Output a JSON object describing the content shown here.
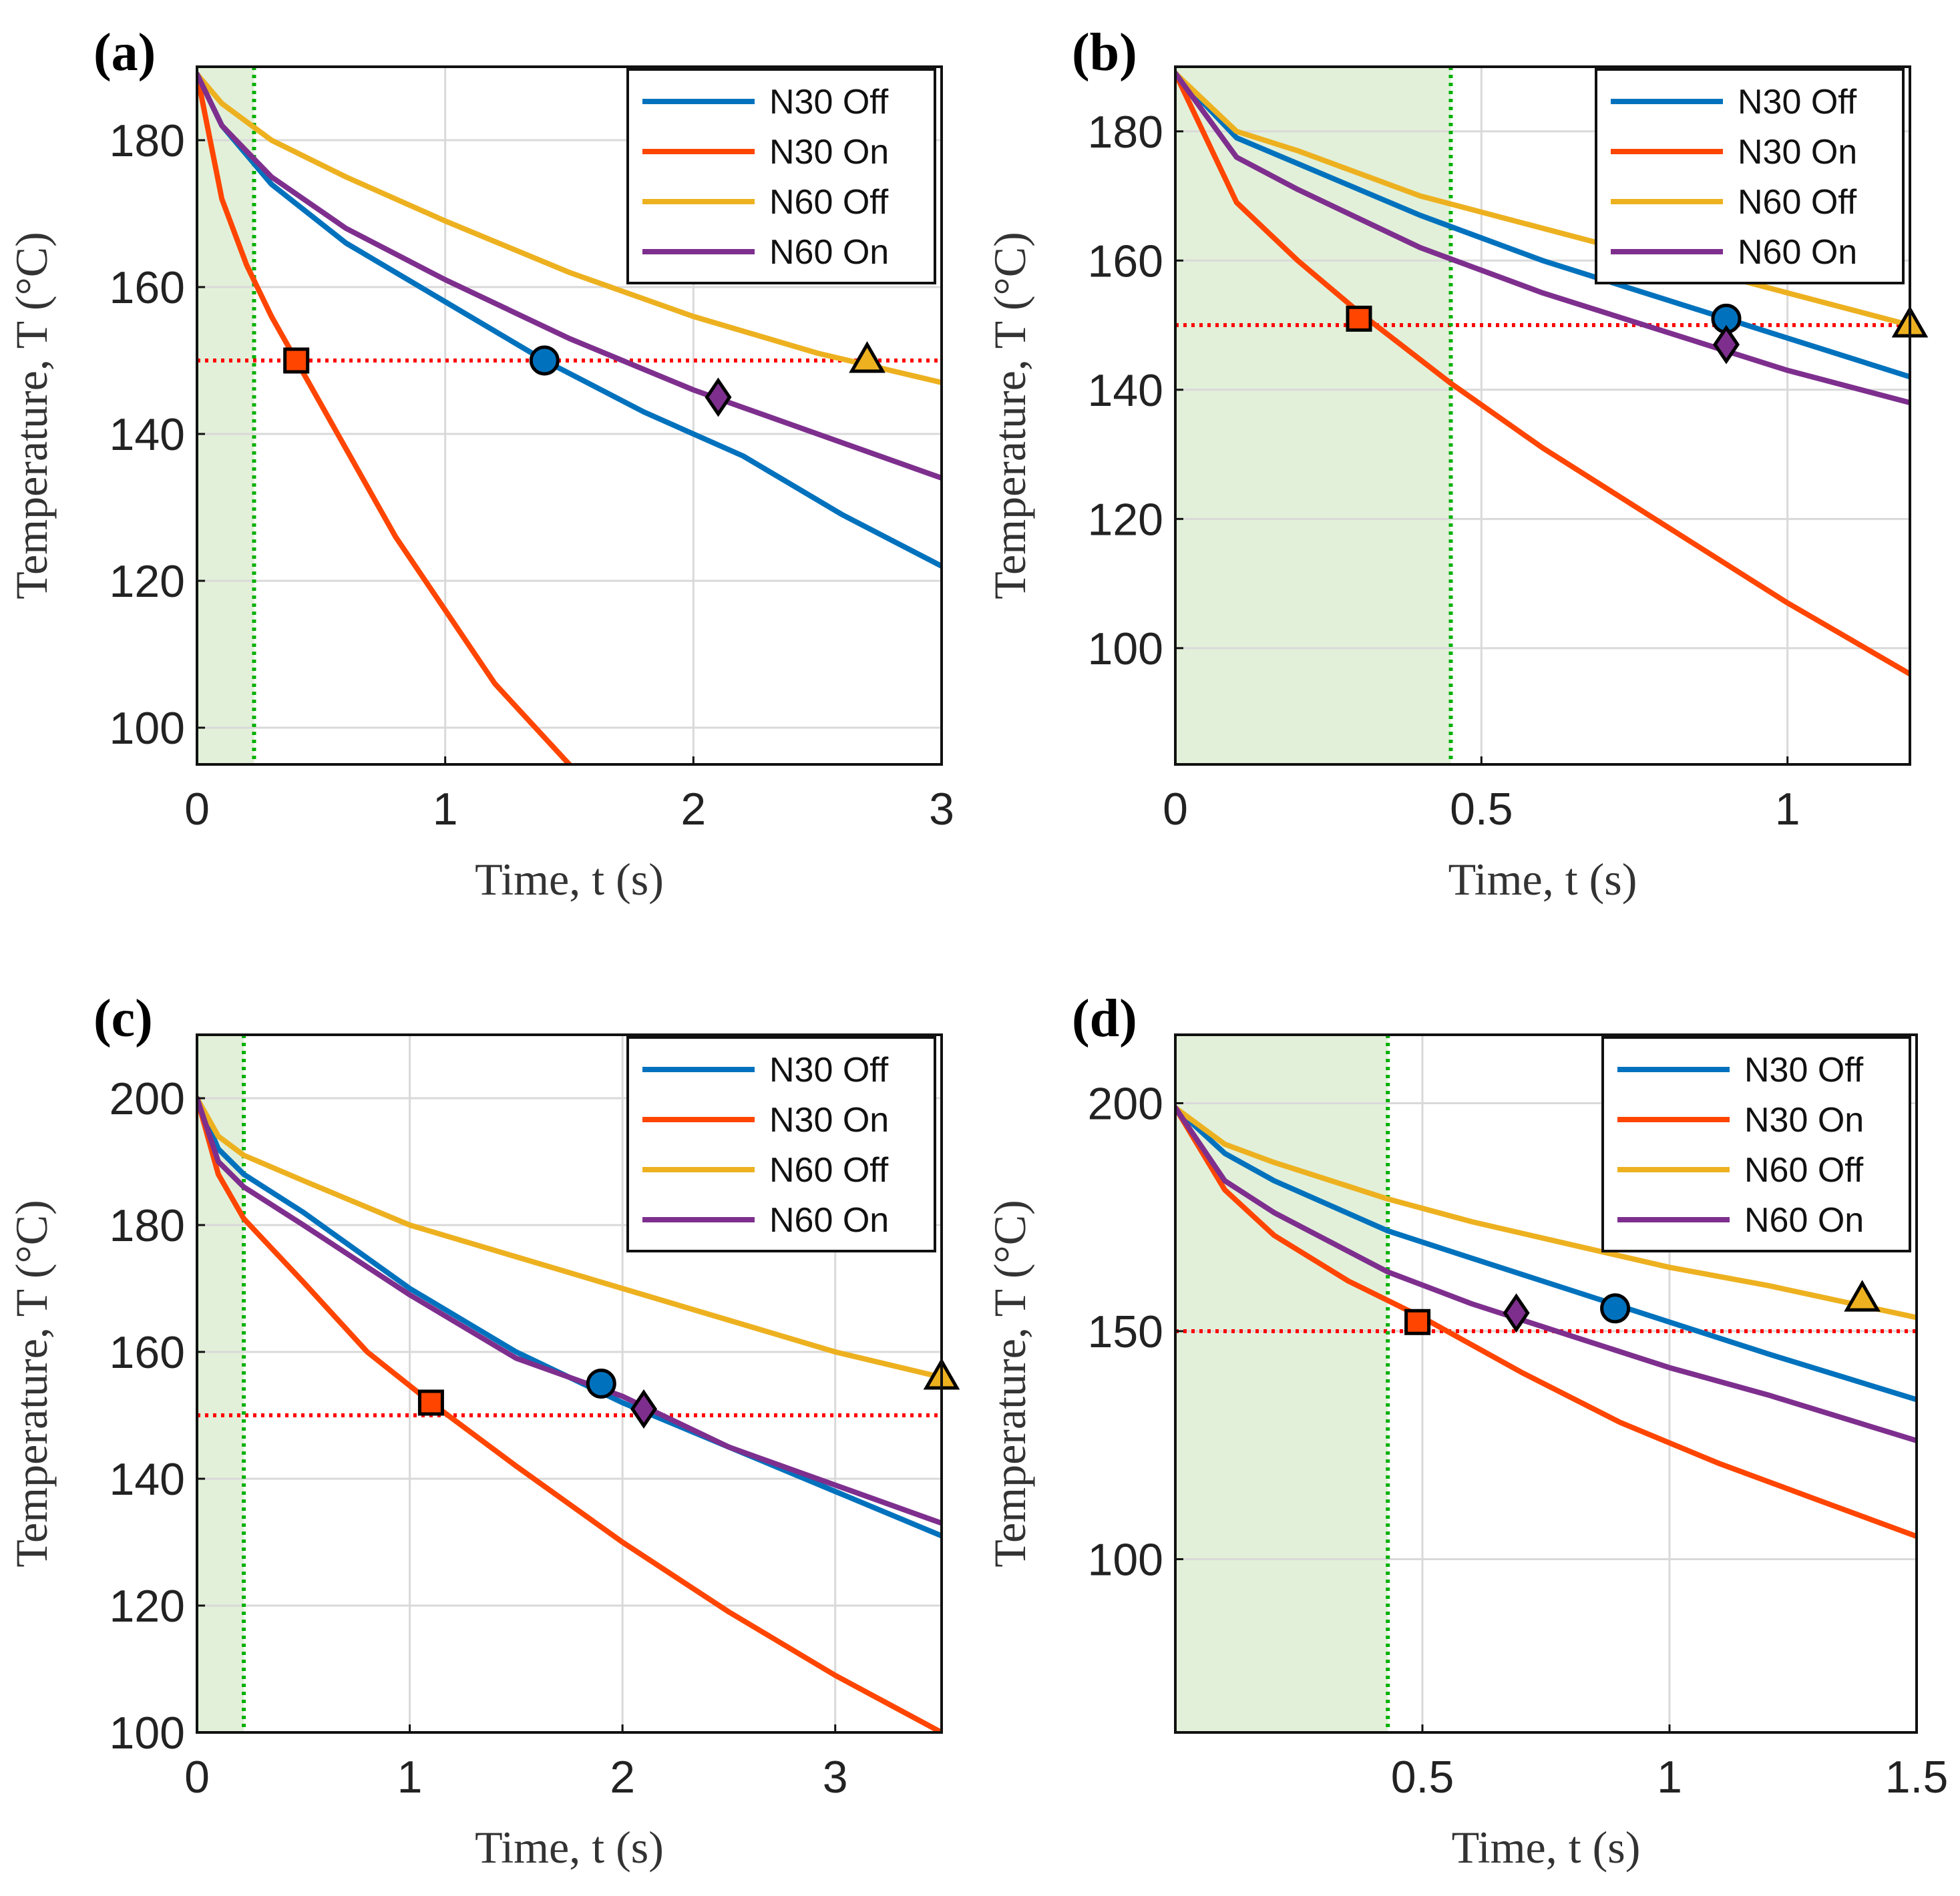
{
  "colors": {
    "N30 Off": "#0072BD",
    "N30 On": "#FF4500",
    "N60 Off": "#EDB120",
    "N60 On": "#7E2F8E",
    "shade": "#E2F0D9",
    "threshold": "#FF0000",
    "cutoff": "#00B000"
  },
  "chart_data": [
    {
      "panel": "(a)",
      "type": "line",
      "xlabel": "Time, t (s)",
      "ylabel": "Temperature, T (°C)",
      "xlim": [
        0,
        3
      ],
      "ylim": [
        95,
        190
      ],
      "xticks": [
        0,
        1,
        2,
        3
      ],
      "yticks": [
        100,
        120,
        140,
        160,
        180
      ],
      "grid": true,
      "legend_position": "top-right",
      "shaded_until": 0.23,
      "cutoff_line": 0.23,
      "threshold": 150,
      "series": [
        {
          "name": "N30 Off",
          "x": [
            0,
            0.1,
            0.3,
            0.6,
            1.0,
            1.4,
            1.8,
            2.2,
            2.6,
            3.0
          ],
          "y": [
            189,
            182,
            174,
            166,
            158,
            150,
            143,
            137,
            129,
            122
          ]
        },
        {
          "name": "N30 On",
          "x": [
            0,
            0.1,
            0.2,
            0.3,
            0.4,
            0.6,
            0.8,
            1.0,
            1.2,
            1.5
          ],
          "y": [
            189,
            172,
            163,
            156,
            150,
            138,
            126,
            116,
            106,
            95
          ]
        },
        {
          "name": "N60 Off",
          "x": [
            0,
            0.1,
            0.3,
            0.6,
            1.0,
            1.5,
            2.0,
            2.5,
            3.0
          ],
          "y": [
            189,
            185,
            180,
            175,
            169,
            162,
            156,
            151,
            147
          ]
        },
        {
          "name": "N60 On",
          "x": [
            0,
            0.1,
            0.3,
            0.6,
            1.0,
            1.5,
            2.0,
            2.5,
            3.0
          ],
          "y": [
            189,
            182,
            175,
            168,
            161,
            153,
            146,
            140,
            134
          ]
        }
      ],
      "markers": [
        {
          "series": "N30 On",
          "shape": "square",
          "x": 0.4,
          "y": 150
        },
        {
          "series": "N30 Off",
          "shape": "circle",
          "x": 1.4,
          "y": 150
        },
        {
          "series": "N60 On",
          "shape": "diamond",
          "x": 2.1,
          "y": 145
        },
        {
          "series": "N60 Off",
          "shape": "triangle",
          "x": 2.7,
          "y": 150
        }
      ]
    },
    {
      "panel": "(b)",
      "type": "line",
      "xlabel": "Time, t (s)",
      "ylabel": "Temperature, T (°C)",
      "xlim": [
        0,
        1.2
      ],
      "ylim": [
        82,
        190
      ],
      "xticks": [
        0,
        0.5,
        1
      ],
      "yticks": [
        100,
        120,
        140,
        160,
        180
      ],
      "grid": true,
      "legend_position": "top-right",
      "shaded_until": 0.45,
      "cutoff_line": 0.45,
      "threshold": 150,
      "series": [
        {
          "name": "N30 Off",
          "x": [
            0,
            0.1,
            0.2,
            0.4,
            0.6,
            0.8,
            1.0,
            1.2
          ],
          "y": [
            189,
            179,
            175,
            167,
            160,
            154,
            148,
            142
          ]
        },
        {
          "name": "N30 On",
          "x": [
            0,
            0.1,
            0.2,
            0.3,
            0.45,
            0.6,
            0.8,
            1.0,
            1.2
          ],
          "y": [
            189,
            169,
            160,
            152,
            141,
            131,
            119,
            107,
            96
          ]
        },
        {
          "name": "N60 Off",
          "x": [
            0,
            0.1,
            0.2,
            0.4,
            0.6,
            0.8,
            1.0,
            1.2
          ],
          "y": [
            189,
            180,
            177,
            170,
            165,
            160,
            155,
            150
          ]
        },
        {
          "name": "N60 On",
          "x": [
            0,
            0.1,
            0.2,
            0.4,
            0.6,
            0.8,
            1.0,
            1.2
          ],
          "y": [
            189,
            176,
            171,
            162,
            155,
            149,
            143,
            138
          ]
        }
      ],
      "markers": [
        {
          "series": "N30 On",
          "shape": "square",
          "x": 0.3,
          "y": 151
        },
        {
          "series": "N30 Off",
          "shape": "circle",
          "x": 0.9,
          "y": 151
        },
        {
          "series": "N60 On",
          "shape": "diamond",
          "x": 0.9,
          "y": 147
        },
        {
          "series": "N60 Off",
          "shape": "triangle",
          "x": 1.2,
          "y": 150
        }
      ]
    },
    {
      "panel": "(c)",
      "type": "line",
      "xlabel": "Time, t (s)",
      "ylabel": "Temperature, T (°C)",
      "xlim": [
        0,
        3.5
      ],
      "ylim": [
        100,
        210
      ],
      "xticks": [
        0,
        1,
        2,
        3
      ],
      "yticks": [
        100,
        120,
        140,
        160,
        180,
        200
      ],
      "grid": true,
      "legend_position": "top-right",
      "shaded_until": 0.22,
      "cutoff_line": 0.22,
      "threshold": 150,
      "series": [
        {
          "name": "N30 Off",
          "x": [
            0,
            0.1,
            0.22,
            0.5,
            1.0,
            1.5,
            2.0,
            2.5,
            3.0,
            3.5
          ],
          "y": [
            200,
            192,
            188,
            182,
            170,
            160,
            152,
            145,
            138,
            131
          ]
        },
        {
          "name": "N30 On",
          "x": [
            0,
            0.1,
            0.22,
            0.5,
            0.8,
            1.1,
            1.5,
            2.0,
            2.5,
            3.0,
            3.5
          ],
          "y": [
            200,
            188,
            181,
            171,
            160,
            152,
            142,
            130,
            119,
            109,
            100
          ]
        },
        {
          "name": "N60 Off",
          "x": [
            0,
            0.1,
            0.22,
            0.5,
            1.0,
            1.5,
            2.0,
            2.5,
            3.0,
            3.5
          ],
          "y": [
            200,
            194,
            191,
            187,
            180,
            175,
            170,
            165,
            160,
            156
          ]
        },
        {
          "name": "N60 On",
          "x": [
            0,
            0.1,
            0.22,
            0.5,
            1.0,
            1.5,
            2.0,
            2.5,
            3.0,
            3.5
          ],
          "y": [
            200,
            190,
            186,
            180,
            169,
            159,
            153,
            145,
            139,
            133
          ]
        }
      ],
      "markers": [
        {
          "series": "N30 On",
          "shape": "square",
          "x": 1.1,
          "y": 152
        },
        {
          "series": "N30 Off",
          "shape": "circle",
          "x": 1.9,
          "y": 155
        },
        {
          "series": "N60 On",
          "shape": "diamond",
          "x": 2.1,
          "y": 151
        },
        {
          "series": "N60 Off",
          "shape": "triangle",
          "x": 3.5,
          "y": 156
        }
      ]
    },
    {
      "panel": "(d)",
      "type": "line",
      "xlabel": "Time, t (s)",
      "ylabel": "Temperature, T (°C)",
      "xlim": [
        0,
        1.5
      ],
      "ylim": [
        62,
        215
      ],
      "xticks": [
        0.5,
        1,
        1.5
      ],
      "xtick_labels": [
        "0.5",
        "1",
        "1.5"
      ],
      "yticks": [
        100,
        150,
        200
      ],
      "grid": true,
      "legend_position": "top-right",
      "shaded_until": 0.43,
      "cutoff_line": 0.43,
      "threshold": 150,
      "series": [
        {
          "name": "N30 Off",
          "x": [
            0,
            0.1,
            0.2,
            0.43,
            0.6,
            0.8,
            1.0,
            1.2,
            1.5
          ],
          "y": [
            199,
            189,
            183,
            172,
            166,
            159,
            152,
            145,
            135
          ]
        },
        {
          "name": "N30 On",
          "x": [
            0,
            0.1,
            0.2,
            0.35,
            0.5,
            0.7,
            0.9,
            1.1,
            1.3,
            1.5
          ],
          "y": [
            199,
            181,
            171,
            161,
            153,
            141,
            130,
            121,
            113,
            105
          ]
        },
        {
          "name": "N60 Off",
          "x": [
            0,
            0.1,
            0.2,
            0.43,
            0.6,
            0.8,
            1.0,
            1.2,
            1.5
          ],
          "y": [
            199,
            191,
            187,
            179,
            174,
            169,
            164,
            160,
            153
          ]
        },
        {
          "name": "N60 On",
          "x": [
            0,
            0.1,
            0.2,
            0.43,
            0.6,
            0.8,
            1.0,
            1.2,
            1.5
          ],
          "y": [
            199,
            183,
            176,
            163,
            156,
            149,
            142,
            136,
            126
          ]
        }
      ],
      "markers": [
        {
          "series": "N30 On",
          "shape": "square",
          "x": 0.49,
          "y": 152
        },
        {
          "series": "N30 Off",
          "shape": "circle",
          "x": 0.89,
          "y": 155
        },
        {
          "series": "N60 On",
          "shape": "diamond",
          "x": 0.69,
          "y": 154
        },
        {
          "series": "N60 Off",
          "shape": "triangle",
          "x": 1.39,
          "y": 157
        }
      ]
    }
  ]
}
